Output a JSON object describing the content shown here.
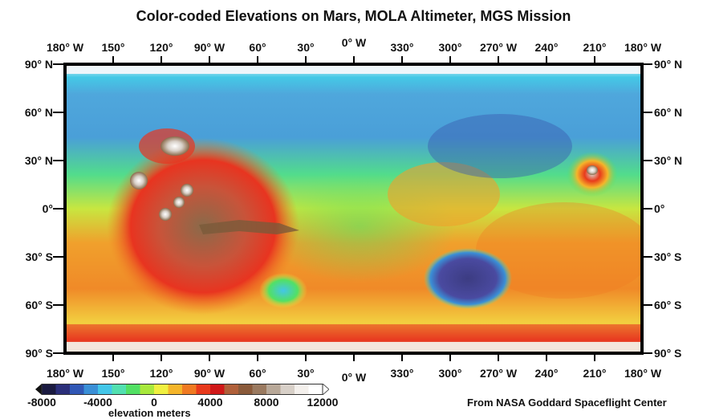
{
  "title": "Color-coded Elevations on Mars, MOLA Altimeter, MGS Mission",
  "longitude_labels_top": [
    "180° W",
    "150°",
    "120°",
    "90° W",
    "60°",
    "30°",
    "0° W",
    "330°",
    "300°",
    "270° W",
    "240°",
    "210°",
    "180° W"
  ],
  "longitude_labels_bottom": [
    "180° W",
    "150°",
    "120°",
    "90° W",
    "60°",
    "30°",
    "0° W",
    "330°",
    "300°",
    "270° W",
    "240°",
    "210°",
    "180° W"
  ],
  "latitude_labels_left": [
    "90° N",
    "60° N",
    "30° N",
    "0°",
    "30° S",
    "60° S",
    "90° S"
  ],
  "latitude_labels_right": [
    "90° N",
    "60° N",
    "30° N",
    "0°",
    "30° S",
    "60° S",
    "90° S"
  ],
  "credit": "From NASA Goddard Spaceflight Center",
  "scale": {
    "title": "elevation meters",
    "labels": [
      "-8000",
      "-4000",
      "0",
      "4000",
      "8000",
      "12000"
    ],
    "min": -8000,
    "max": 12000,
    "colors": [
      "#1a1a40",
      "#2b2f7a",
      "#3057b5",
      "#3a8fd6",
      "#43c6e8",
      "#52e0b0",
      "#52e064",
      "#a8e83c",
      "#f0f040",
      "#f5b52a",
      "#f07a22",
      "#e83a1c",
      "#d01818",
      "#b0603a",
      "#8a5a3a",
      "#9a7a60",
      "#b8a898",
      "#d8d0c8",
      "#f4f0ec",
      "#ffffff"
    ]
  }
}
